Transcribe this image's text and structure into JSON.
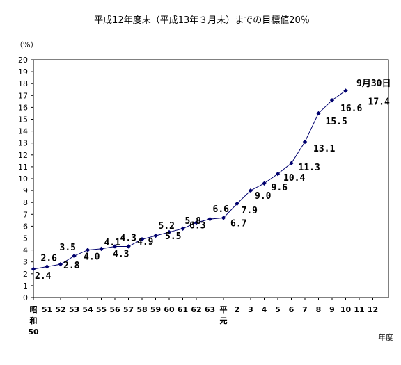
{
  "chart_data": {
    "type": "line",
    "title": "平成12年度末（平成13年３月末）までの目標値20％",
    "ylabel": "（%）",
    "xlabel": "年度",
    "ylim": [
      0,
      20
    ],
    "y_ticks": [
      "0",
      "1",
      "2",
      "3",
      "4",
      "5",
      "6",
      "7",
      "8",
      "9",
      "10",
      "11",
      "12",
      "13",
      "14",
      "15",
      "16",
      "17",
      "18",
      "19",
      "20"
    ],
    "grid": false,
    "categories": [
      "昭和50",
      "51",
      "52",
      "53",
      "54",
      "55",
      "56",
      "57",
      "58",
      "59",
      "60",
      "61",
      "62",
      "63",
      "平元",
      "2",
      "3",
      "4",
      "5",
      "6",
      "7",
      "8",
      "9",
      "10",
      "11",
      "12"
    ],
    "x_tick_lines": [
      [
        "昭",
        "和",
        "50"
      ],
      [
        "51"
      ],
      [
        "52"
      ],
      [
        "53"
      ],
      [
        "54"
      ],
      [
        "55"
      ],
      [
        "56"
      ],
      [
        "57"
      ],
      [
        "58"
      ],
      [
        "59"
      ],
      [
        "60"
      ],
      [
        "61"
      ],
      [
        "62"
      ],
      [
        "63"
      ],
      [
        "平",
        "元"
      ],
      [
        "2"
      ],
      [
        "3"
      ],
      [
        "4"
      ],
      [
        "5"
      ],
      [
        "6"
      ],
      [
        "7"
      ],
      [
        "8"
      ],
      [
        "9"
      ],
      [
        "10"
      ],
      [
        "11"
      ],
      [
        "12"
      ]
    ],
    "series": [
      {
        "color": "#00006e",
        "values": [
          2.4,
          2.6,
          2.8,
          3.5,
          4.0,
          4.1,
          4.3,
          4.3,
          4.9,
          5.2,
          5.5,
          5.8,
          6.3,
          6.6,
          6.7,
          7.9,
          9.0,
          9.6,
          10.4,
          11.3,
          13.1,
          15.5,
          16.6,
          17.4,
          null,
          null
        ],
        "data_labels": [
          "2.4",
          "2.6",
          "2.8",
          "3.5",
          "4.0",
          "4.1",
          "4.3",
          "4.3",
          "4.9",
          "5.2",
          "5.5",
          "5.8",
          "6.3",
          "6.6",
          "6.7",
          "7.9",
          "9.0",
          "9.6",
          "10.4",
          "11.3",
          "13.1",
          "15.5",
          "16.6",
          "17.4",
          null,
          null
        ]
      }
    ],
    "annotation": "9月30日"
  }
}
